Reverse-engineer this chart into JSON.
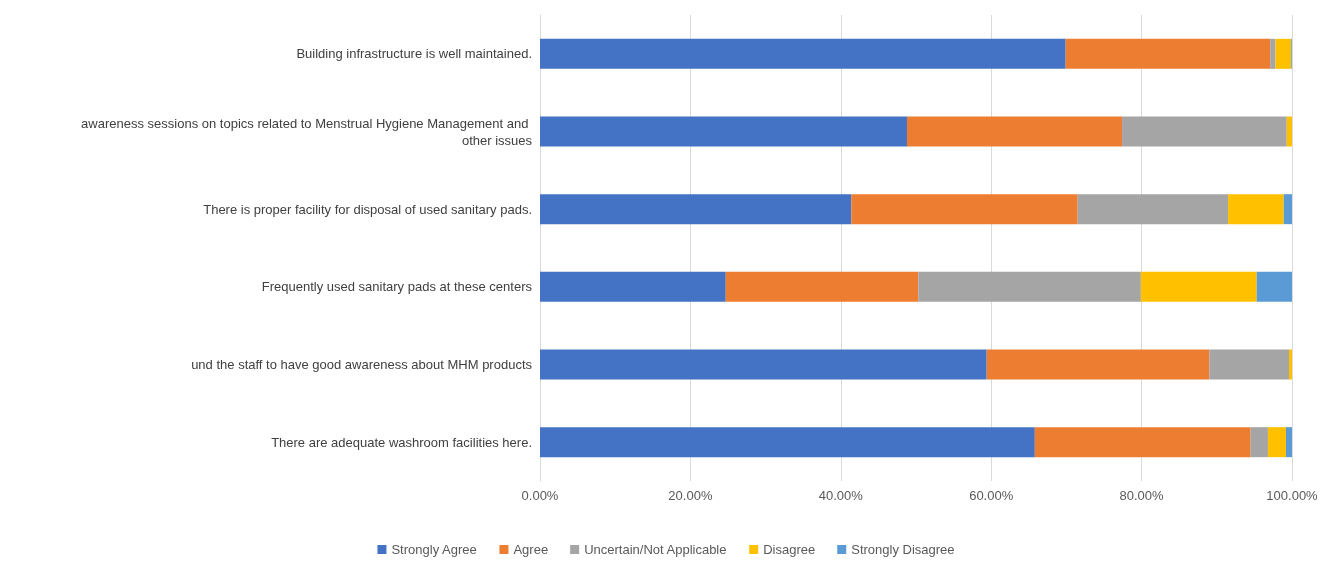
{
  "chart_data": {
    "type": "bar",
    "orientation": "horizontal",
    "stacked": true,
    "categories": [
      "Building infrastructure is well maintained.",
      "awareness sessions on topics related to Menstrual Hygiene Management and other issues",
      "There is proper facility for disposal of used sanitary pads.",
      "Frequently used sanitary pads at these centers",
      "und the staff to have good awareness about MHM products",
      "There are adequate washroom facilities here."
    ],
    "series": [
      {
        "name": "Strongly Agree",
        "color": "#4472c4",
        "values": [
          69.9,
          48.8,
          41.4,
          24.7,
          59.4,
          65.8
        ]
      },
      {
        "name": "Agree",
        "color": "#ed7d31",
        "values": [
          27.2,
          28.6,
          30.1,
          25.6,
          29.6,
          28.7
        ]
      },
      {
        "name": "Uncertain/Not Applicable",
        "color": "#a5a5a5",
        "values": [
          0.7,
          21.9,
          20.0,
          29.6,
          10.6,
          2.3
        ]
      },
      {
        "name": "Disagree",
        "color": "#ffc000",
        "values": [
          2.1,
          0.7,
          7.4,
          15.4,
          0.4,
          2.4
        ]
      },
      {
        "name": "Strongly Disagree",
        "color": "#5b9bd5",
        "values": [
          0.1,
          0,
          1.1,
          4.7,
          0,
          0.8
        ]
      }
    ],
    "xlim": [
      0,
      100
    ],
    "xticks": [
      {
        "value": 0,
        "label": "0.00%"
      },
      {
        "value": 20,
        "label": "20.00%"
      },
      {
        "value": 40,
        "label": "40.00%"
      },
      {
        "value": 60,
        "label": "60.00%"
      },
      {
        "value": 80,
        "label": "80.00%"
      },
      {
        "value": 100,
        "label": "100.00%"
      }
    ],
    "grid": "x",
    "legend": "bottom"
  }
}
